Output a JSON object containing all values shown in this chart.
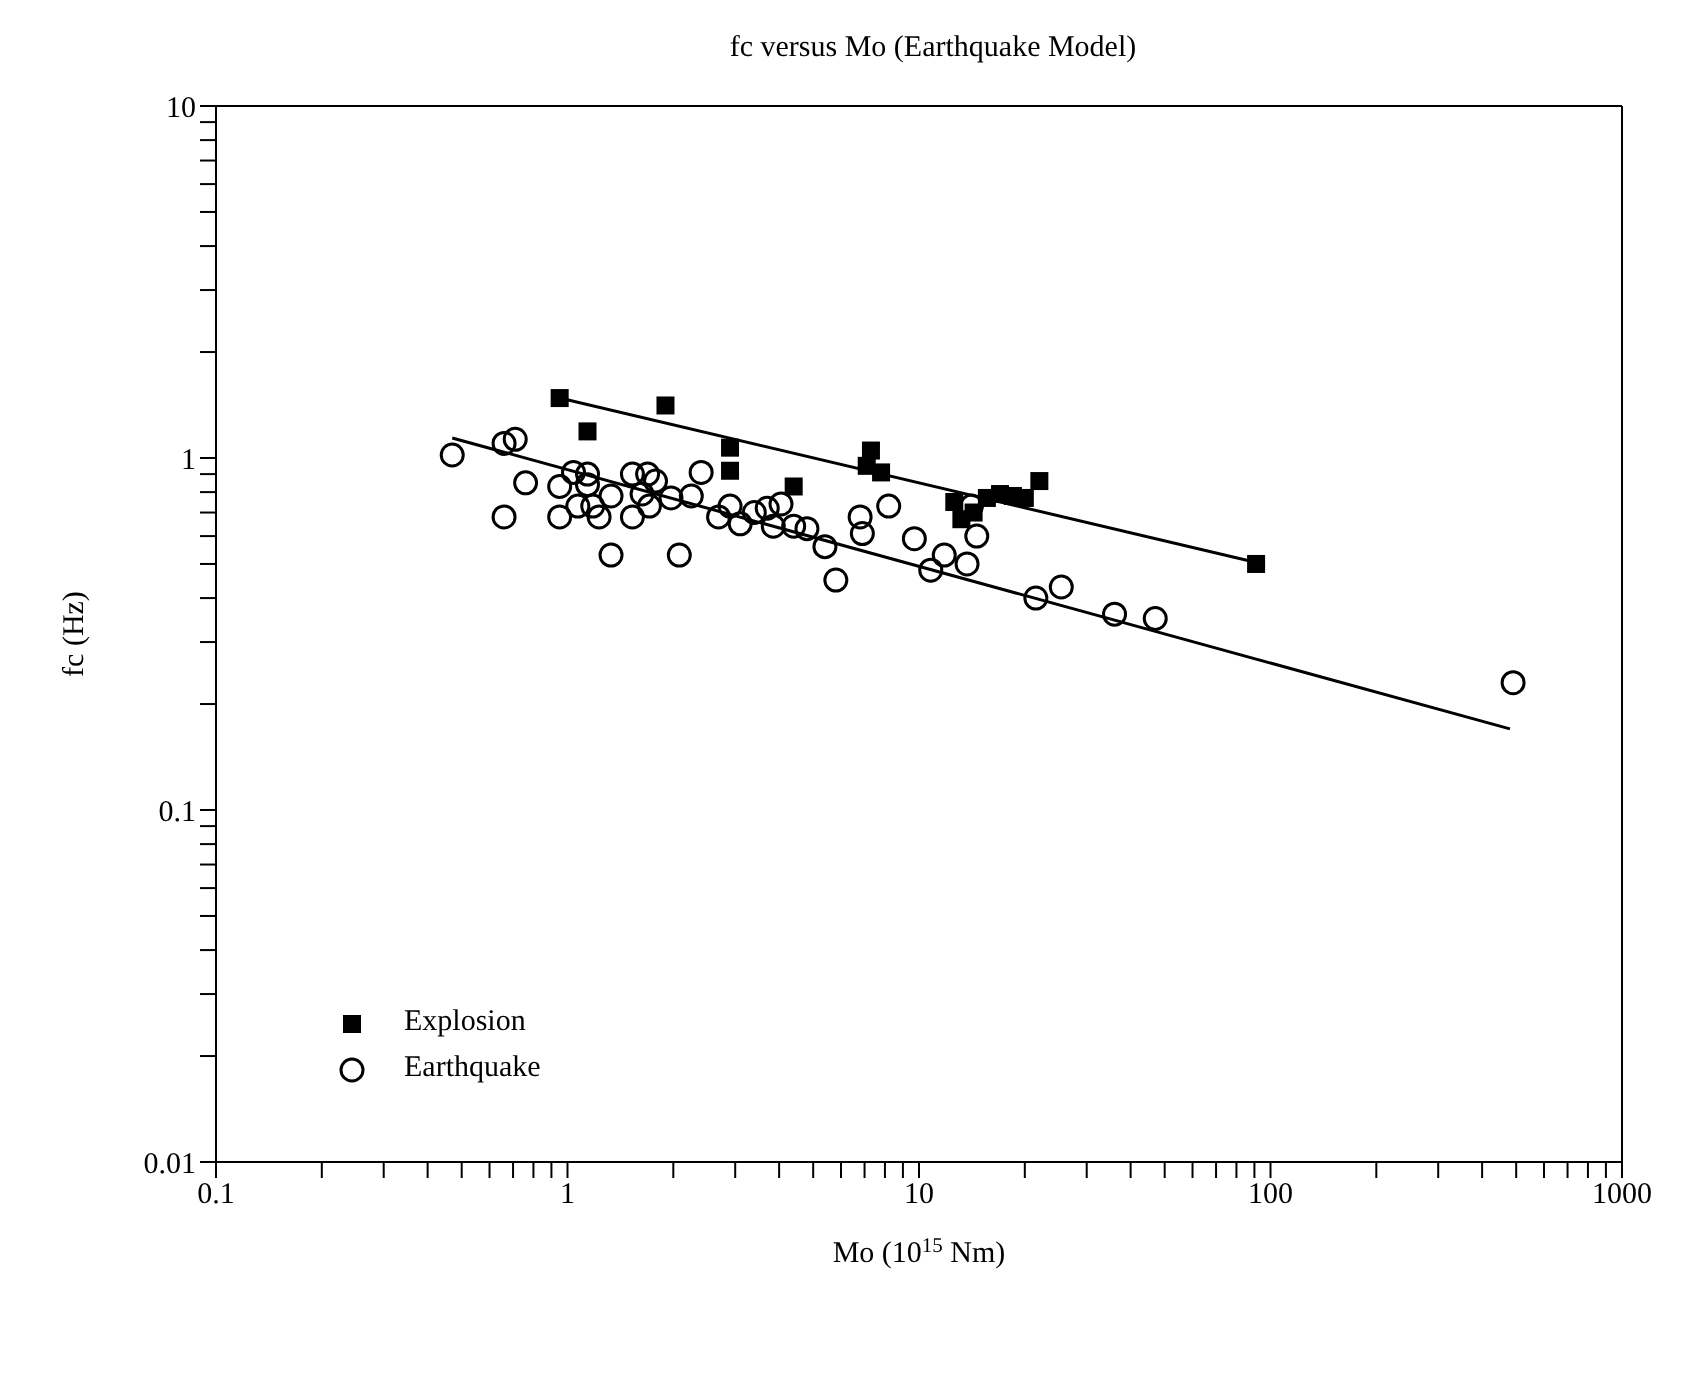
{
  "chart_data": {
    "type": "scatter",
    "title": "fc versus Mo (Earthquake Model)",
    "xlabel": "Mo (10$^{15}$ Nm)",
    "ylabel": "fc (Hz)",
    "log": "xy",
    "xlim": [
      0.1,
      1000
    ],
    "ylim": [
      0.01,
      10
    ],
    "xticks": [
      0.1,
      {
        "value": 0.2,
        "label": null
      },
      {
        "value": 0.3,
        "label": null
      },
      {
        "value": 0.4,
        "label": null
      },
      {
        "value": 0.5,
        "label": null
      },
      {
        "value": 0.6,
        "label": null
      },
      {
        "value": 0.7,
        "label": null
      },
      {
        "value": 0.8,
        "label": null
      },
      {
        "value": 0.9,
        "label": null
      },
      1,
      {
        "value": 2,
        "label": null
      },
      {
        "value": 3,
        "label": null
      },
      {
        "value": 4,
        "label": null
      },
      {
        "value": 5,
        "label": null
      },
      {
        "value": 6,
        "label": null
      },
      {
        "value": 7,
        "label": null
      },
      {
        "value": 8,
        "label": null
      },
      {
        "value": 9,
        "label": null
      },
      10,
      {
        "value": 20,
        "label": null
      },
      {
        "value": 30,
        "label": null
      },
      {
        "value": 40,
        "label": null
      },
      {
        "value": 50,
        "label": null
      },
      {
        "value": 60,
        "label": null
      },
      {
        "value": 70,
        "label": null
      },
      {
        "value": 80,
        "label": null
      },
      {
        "value": 90,
        "label": null
      },
      100,
      {
        "value": 200,
        "label": null
      },
      {
        "value": 300,
        "label": null
      },
      {
        "value": 400,
        "label": null
      },
      {
        "value": 500,
        "label": null
      },
      {
        "value": 600,
        "label": null
      },
      {
        "value": 700,
        "label": null
      },
      {
        "value": 800,
        "label": null
      },
      {
        "value": 900,
        "label": null
      },
      1000
    ],
    "yticks": [
      0.01,
      {
        "value": 0.02,
        "label": null
      },
      {
        "value": 0.03,
        "label": null
      },
      {
        "value": 0.04,
        "label": null
      },
      {
        "value": 0.05,
        "label": null
      },
      {
        "value": 0.06,
        "label": null
      },
      {
        "value": 0.07,
        "label": null
      },
      {
        "value": 0.08,
        "label": null
      },
      {
        "value": 0.09,
        "label": null
      },
      0.1,
      {
        "value": 0.2,
        "label": null
      },
      {
        "value": 0.3,
        "label": null
      },
      {
        "value": 0.4,
        "label": null
      },
      {
        "value": 0.5,
        "label": null
      },
      {
        "value": 0.6,
        "label": null
      },
      {
        "value": 0.7,
        "label": null
      },
      {
        "value": 0.8,
        "label": null
      },
      {
        "value": 0.9,
        "label": null
      },
      1,
      {
        "value": 2,
        "label": null
      },
      {
        "value": 3,
        "label": null
      },
      {
        "value": 4,
        "label": null
      },
      {
        "value": 5,
        "label": null
      },
      {
        "value": 6,
        "label": null
      },
      {
        "value": 7,
        "label": null
      },
      {
        "value": 8,
        "label": null
      },
      {
        "value": 9,
        "label": null
      },
      10
    ],
    "grid": false,
    "legend": "bottom left",
    "series": [
      {
        "name": "Explosion",
        "marker": "square",
        "color": "#000000",
        "x": [
          0.95,
          1.14,
          1.9,
          2.9,
          2.9,
          4.4,
          7.3,
          7.1,
          7.8,
          12.6,
          13.2,
          14.3,
          15.6,
          17,
          18.5,
          20,
          22,
          91
        ],
        "values": [
          1.48,
          1.19,
          1.41,
          1.07,
          0.92,
          0.83,
          1.05,
          0.95,
          0.91,
          0.75,
          0.67,
          0.7,
          0.77,
          0.79,
          0.78,
          0.77,
          0.86,
          0.5
        ]
      },
      {
        "name": "Earthquake",
        "marker": "circle",
        "color": "#000000",
        "x": [
          0.47,
          0.66,
          0.71,
          0.76,
          0.66,
          0.95,
          1.04,
          1.14,
          1.14,
          0.95,
          1.07,
          1.18,
          1.23,
          1.33,
          1.33,
          1.53,
          1.53,
          1.69,
          1.78,
          1.63,
          1.71,
          1.97,
          2.08,
          2.25,
          2.4,
          2.69,
          2.9,
          3.1,
          3.4,
          3.7,
          4.05,
          3.85,
          4.4,
          4.8,
          5.4,
          5.8,
          6.8,
          6.9,
          8.2,
          9.7,
          10.8,
          11.8,
          13.7,
          14.6,
          14.1,
          21.5,
          25.4,
          36,
          47,
          490
        ],
        "values": [
          1.02,
          1.1,
          1.13,
          0.85,
          0.68,
          0.83,
          0.91,
          0.9,
          0.84,
          0.68,
          0.73,
          0.73,
          0.68,
          0.78,
          0.53,
          0.9,
          0.68,
          0.9,
          0.86,
          0.79,
          0.73,
          0.77,
          0.53,
          0.78,
          0.91,
          0.68,
          0.73,
          0.65,
          0.7,
          0.72,
          0.74,
          0.64,
          0.64,
          0.63,
          0.56,
          0.45,
          0.68,
          0.61,
          0.73,
          0.59,
          0.48,
          0.53,
          0.5,
          0.6,
          0.73,
          0.4,
          0.43,
          0.36,
          0.35,
          0.23
        ]
      },
      {
        "type": "line",
        "marker": "none",
        "line_style": "solid",
        "color": "#000000",
        "x": [
          0.95,
          95
        ],
        "values": [
          1.48,
          0.5
        ]
      },
      {
        "type": "line",
        "marker": "none",
        "line_style": "solid",
        "color": "#000000",
        "x": [
          0.47,
          480
        ],
        "values": [
          1.14,
          0.17
        ]
      }
    ]
  }
}
